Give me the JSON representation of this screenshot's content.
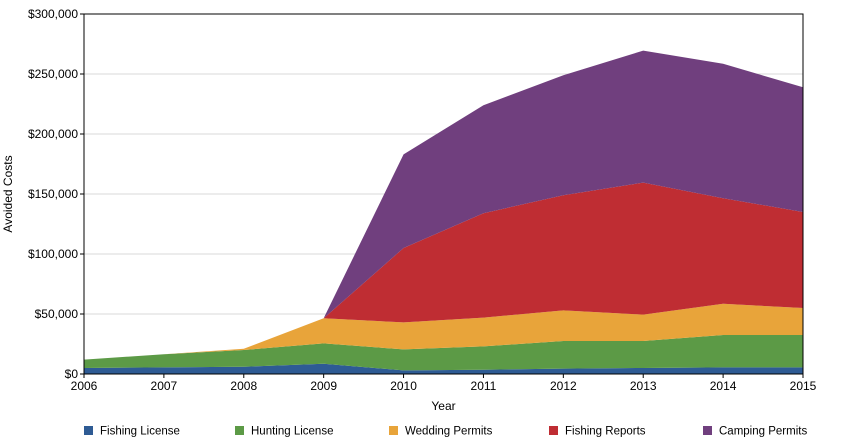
{
  "chart_data": {
    "type": "area",
    "stacked": true,
    "xlabel": "Year",
    "ylabel": "Avoided Costs",
    "ylim": [
      0,
      300000
    ],
    "yticks": [
      0,
      50000,
      100000,
      150000,
      200000,
      250000,
      300000
    ],
    "ytick_labels": [
      "$0",
      "$50,000",
      "$100,000",
      "$150,000",
      "$200,000",
      "$250,000",
      "$300,000"
    ],
    "x": [
      "2006",
      "2007",
      "2008",
      "2009",
      "2010",
      "2011",
      "2012",
      "2013",
      "2014",
      "2015"
    ],
    "grid": "horizontal",
    "legend_position": "bottom",
    "series": [
      {
        "name": "Fishing License",
        "color": "#2e5b94",
        "values": [
          5000,
          5500,
          6000,
          8500,
          3000,
          3500,
          4500,
          5000,
          5500,
          5500
        ]
      },
      {
        "name": "Hunting License",
        "color": "#5c9a46",
        "values": [
          7000,
          11000,
          14000,
          17000,
          17500,
          19500,
          23000,
          22500,
          27000,
          27000
        ]
      },
      {
        "name": "Wedding Permits",
        "color": "#e8a43a",
        "values": [
          0,
          0,
          1000,
          21000,
          22500,
          24000,
          25500,
          22000,
          26000,
          22500
        ]
      },
      {
        "name": "Fishing Reports",
        "color": "#bf2d33",
        "values": [
          0,
          0,
          0,
          0,
          62000,
          87000,
          96000,
          110000,
          88000,
          80000
        ]
      },
      {
        "name": "Camping Permits",
        "color": "#703f7e",
        "values": [
          0,
          0,
          0,
          0,
          78000,
          90000,
          100000,
          110000,
          112000,
          104000
        ]
      }
    ]
  }
}
